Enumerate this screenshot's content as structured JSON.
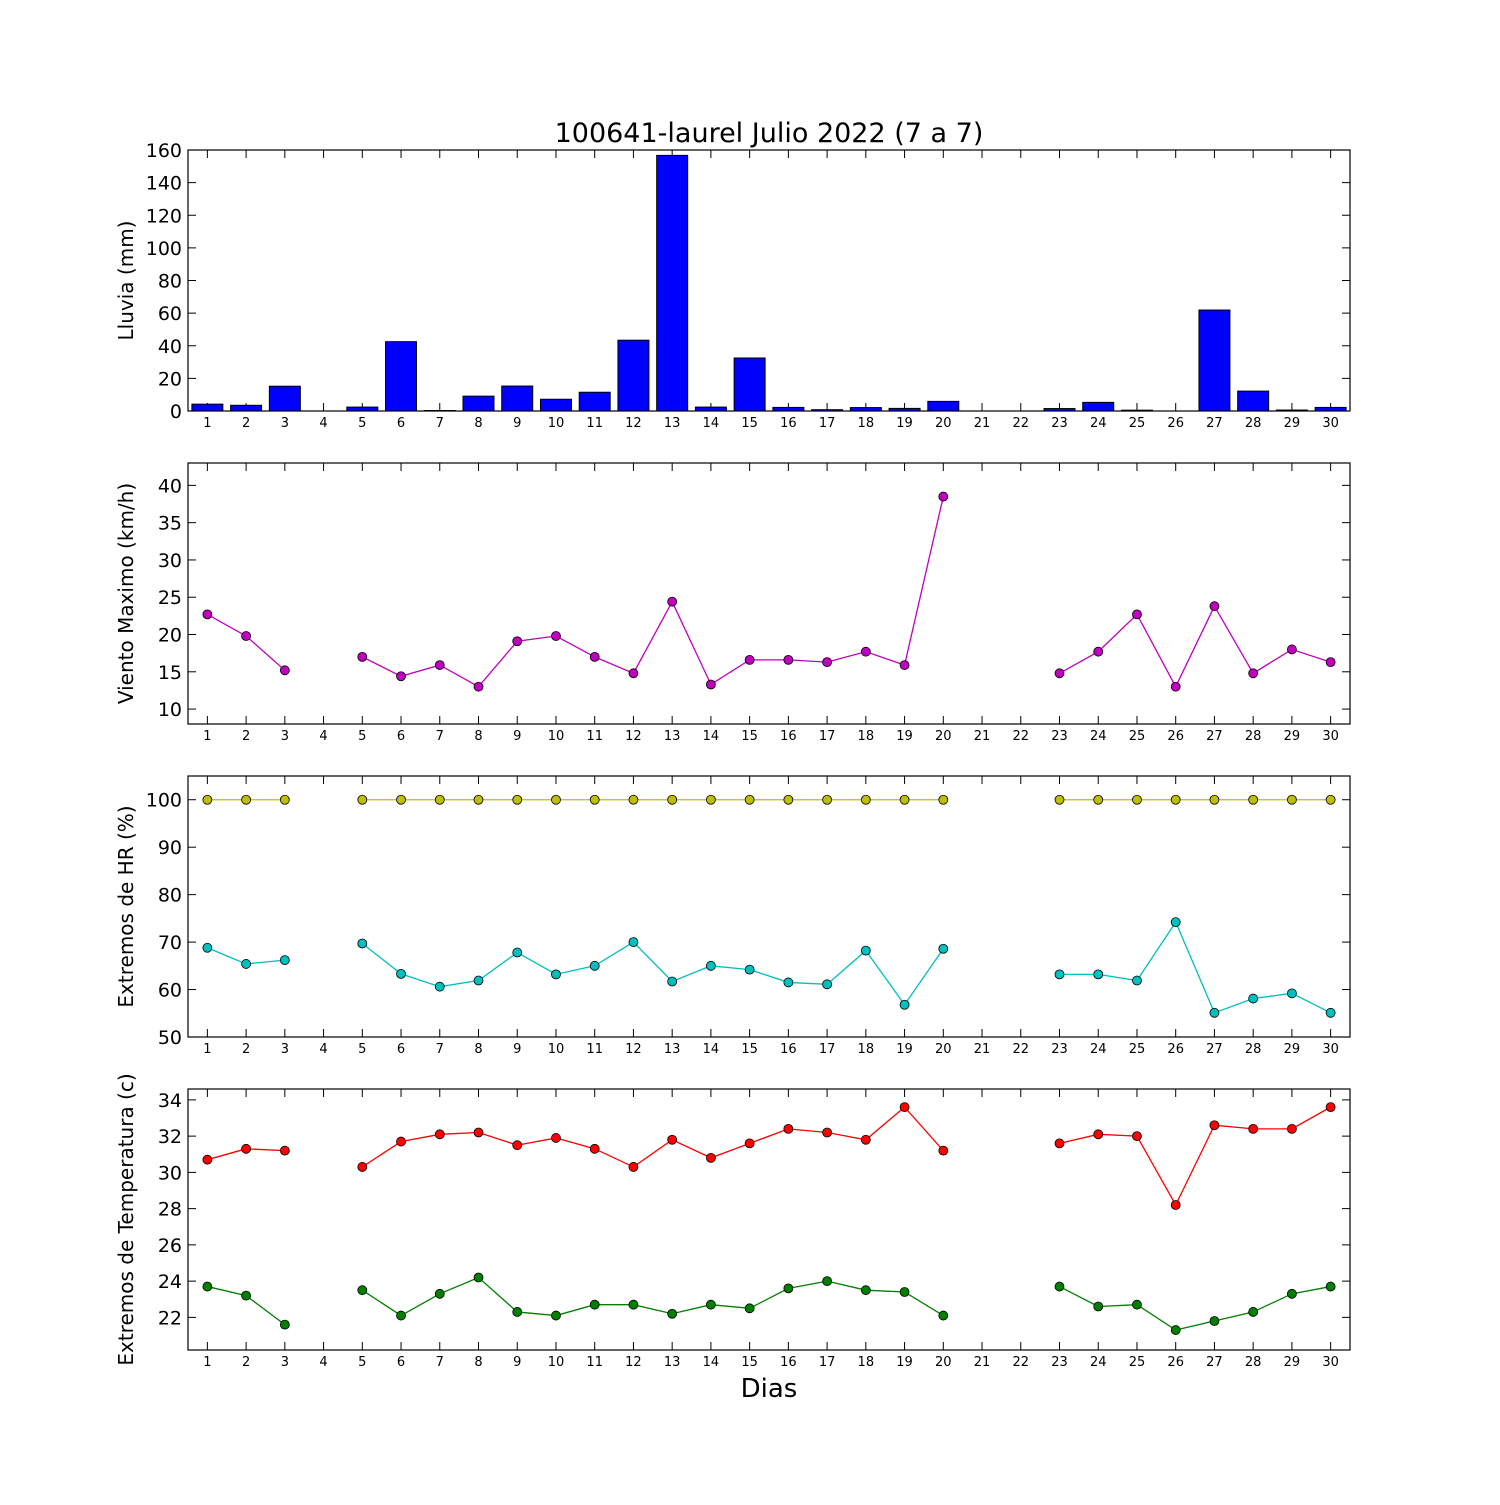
{
  "chart_data": [
    {
      "type": "bar",
      "title": "100641-laurel Julio 2022  (7 a 7)",
      "ylabel": "Lluvia (mm)",
      "xlabel": "",
      "ylim": [
        0,
        160
      ],
      "yticks": [
        0,
        20,
        40,
        60,
        80,
        100,
        120,
        140,
        160
      ],
      "categories": [
        1,
        2,
        3,
        4,
        5,
        6,
        7,
        8,
        9,
        10,
        11,
        12,
        13,
        14,
        15,
        16,
        17,
        18,
        19,
        20,
        21,
        22,
        23,
        24,
        25,
        26,
        27,
        28,
        29,
        30
      ],
      "series": [
        {
          "color": "#0000ff",
          "values": [
            4.2,
            3.5,
            15.2,
            0,
            2.4,
            42.5,
            0.3,
            9.1,
            15.3,
            7.2,
            11.5,
            43.4,
            156.7,
            2.4,
            32.5,
            2.2,
            0.8,
            2.1,
            1.6,
            5.9,
            0,
            0,
            1.5,
            5.3,
            0.5,
            0,
            61.9,
            12.2,
            0.6,
            2.2
          ]
        }
      ]
    },
    {
      "type": "line",
      "ylabel": "Viento Maximo (km/h)",
      "xlabel": "",
      "ylim": [
        8,
        43
      ],
      "yticks": [
        10,
        15,
        20,
        25,
        30,
        35,
        40
      ],
      "categories": [
        1,
        2,
        3,
        4,
        5,
        6,
        7,
        8,
        9,
        10,
        11,
        12,
        13,
        14,
        15,
        16,
        17,
        18,
        19,
        20,
        21,
        22,
        23,
        24,
        25,
        26,
        27,
        28,
        29,
        30
      ],
      "series": [
        {
          "color": "#bf00bf",
          "values": [
            22.7,
            19.8,
            15.2,
            null,
            17.0,
            14.4,
            15.9,
            13.0,
            19.1,
            19.8,
            17.0,
            14.8,
            24.4,
            13.3,
            16.6,
            16.6,
            16.3,
            17.7,
            15.9,
            38.5,
            null,
            null,
            14.8,
            17.7,
            22.7,
            13.0,
            23.8,
            14.8,
            18.0,
            16.3
          ]
        }
      ]
    },
    {
      "type": "line",
      "ylabel": "Extremos de HR (%)",
      "xlabel": "",
      "ylim": [
        50,
        105
      ],
      "yticks": [
        50,
        60,
        70,
        80,
        90,
        100
      ],
      "categories": [
        1,
        2,
        3,
        4,
        5,
        6,
        7,
        8,
        9,
        10,
        11,
        12,
        13,
        14,
        15,
        16,
        17,
        18,
        19,
        20,
        21,
        22,
        23,
        24,
        25,
        26,
        27,
        28,
        29,
        30
      ],
      "series": [
        {
          "color": "#bfbf00",
          "values": [
            100,
            100,
            100,
            null,
            100,
            100,
            100,
            100,
            100,
            100,
            100,
            100,
            100,
            100,
            100,
            100,
            100,
            100,
            100,
            100,
            null,
            null,
            100,
            100,
            100,
            100,
            100,
            100,
            100,
            100
          ]
        },
        {
          "color": "#00bfbf",
          "values": [
            68.8,
            65.4,
            66.2,
            null,
            69.7,
            63.3,
            60.6,
            61.9,
            67.8,
            63.2,
            65.0,
            70.0,
            61.7,
            65.0,
            64.2,
            61.5,
            61.1,
            68.2,
            56.8,
            68.6,
            null,
            null,
            63.2,
            63.2,
            61.9,
            74.2,
            55.1,
            58.1,
            59.2,
            55.1
          ]
        }
      ]
    },
    {
      "type": "line",
      "ylabel": "Extremos de Temperatura (c)",
      "xlabel": "Dias",
      "ylim": [
        20.2,
        34.6
      ],
      "yticks": [
        22,
        24,
        26,
        28,
        30,
        32,
        34
      ],
      "categories": [
        1,
        2,
        3,
        4,
        5,
        6,
        7,
        8,
        9,
        10,
        11,
        12,
        13,
        14,
        15,
        16,
        17,
        18,
        19,
        20,
        21,
        22,
        23,
        24,
        25,
        26,
        27,
        28,
        29,
        30
      ],
      "series": [
        {
          "color": "#ff0000",
          "values": [
            30.7,
            31.3,
            31.2,
            null,
            30.3,
            31.7,
            32.1,
            32.2,
            31.5,
            31.9,
            31.3,
            30.3,
            31.8,
            30.8,
            31.6,
            32.4,
            32.2,
            31.8,
            33.6,
            31.2,
            null,
            null,
            31.6,
            32.1,
            32.0,
            28.2,
            32.6,
            32.4,
            32.4,
            33.6
          ]
        },
        {
          "color": "#007f00",
          "values": [
            23.7,
            23.2,
            21.6,
            null,
            23.5,
            22.1,
            23.3,
            24.2,
            22.3,
            22.1,
            22.7,
            22.7,
            22.2,
            22.7,
            22.5,
            23.6,
            24.0,
            23.5,
            23.4,
            22.1,
            null,
            null,
            23.7,
            22.6,
            22.7,
            21.3,
            21.8,
            22.3,
            23.3,
            23.7
          ]
        }
      ]
    }
  ]
}
